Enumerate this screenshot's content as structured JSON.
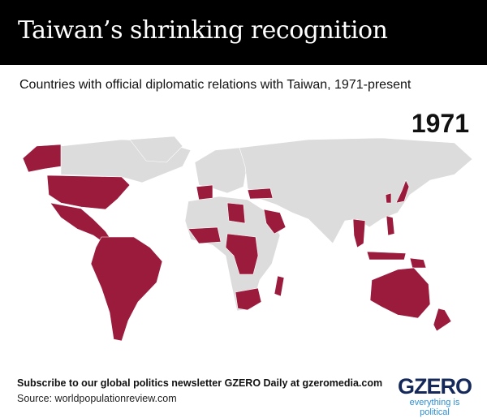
{
  "header": {
    "title": "Taiwan’s shrinking recognition"
  },
  "subtitle": "Countries with official diplomatic relations with Taiwan, 1971-present",
  "map": {
    "year": "1971",
    "colors": {
      "recognizes_taiwan": "#9b1b3c",
      "other": "#dcdcdc",
      "border": "#ffffff"
    },
    "highlighted_regions": [
      "United States",
      "Mexico",
      "Central America",
      "South America",
      "Spain",
      "Turkey",
      "Saudi Arabia",
      "Libya",
      "West Africa",
      "Central Africa",
      "South Africa",
      "Madagascar",
      "Japan",
      "South Korea",
      "Southeast Asia",
      "Philippines",
      "Indonesia",
      "Papua New Guinea",
      "Australia",
      "New Zealand",
      "Alaska"
    ]
  },
  "footer": {
    "subscribe": "Subscribe to our global politics newsletter GZERO Daily at gzeromedia.com",
    "source": "Source: worldpopulationreview.com"
  },
  "logo": {
    "word": "GZERO",
    "tagline": "everything is political"
  }
}
